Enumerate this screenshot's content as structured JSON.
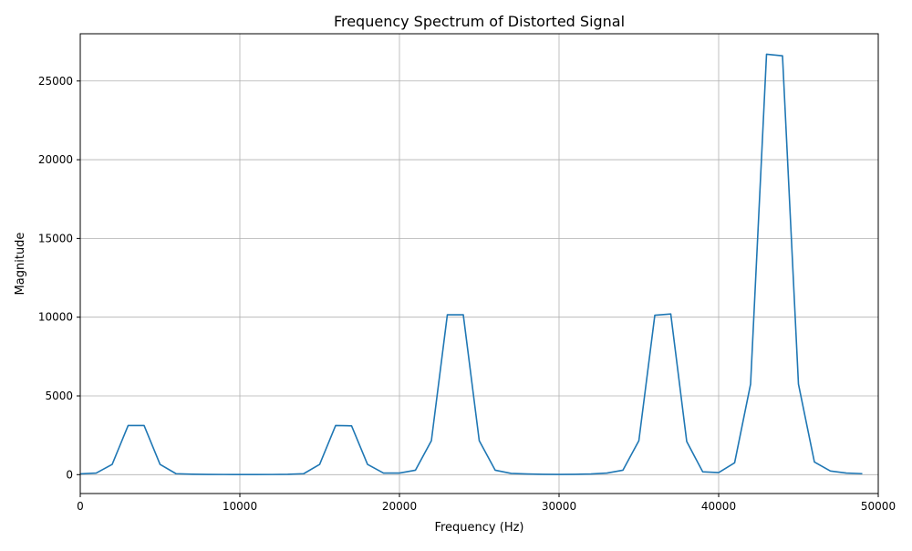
{
  "chart_data": {
    "type": "line",
    "title": "Frequency Spectrum of Distorted Signal",
    "xlabel": "Frequency (Hz)",
    "ylabel": "Magnitude",
    "xlim": [
      0,
      50000
    ],
    "ylim": [
      -1200,
      28000
    ],
    "x_ticks": [
      0,
      10000,
      20000,
      30000,
      40000,
      50000
    ],
    "y_ticks": [
      0,
      5000,
      10000,
      15000,
      20000,
      25000
    ],
    "grid": true,
    "series": [
      {
        "color": "#1f77b4",
        "x": [
          0,
          1000,
          2000,
          3000,
          4000,
          5000,
          6000,
          7000,
          8000,
          9000,
          10000,
          11000,
          12000,
          13000,
          14000,
          15000,
          16000,
          17000,
          18000,
          19000,
          20000,
          21000,
          22000,
          23000,
          24000,
          25000,
          26000,
          27000,
          28000,
          29000,
          30000,
          31000,
          32000,
          33000,
          34000,
          35000,
          36000,
          37000,
          38000,
          39000,
          40000,
          41000,
          42000,
          43000,
          44000,
          45000,
          46000,
          47000,
          48000,
          49000
        ],
        "y": [
          50,
          100,
          650,
          3120,
          3120,
          650,
          60,
          30,
          15,
          10,
          5,
          5,
          10,
          20,
          60,
          650,
          3120,
          3100,
          650,
          100,
          100,
          280,
          2150,
          10150,
          10150,
          2150,
          280,
          80,
          40,
          20,
          15,
          20,
          40,
          100,
          280,
          2150,
          10120,
          10200,
          2100,
          180,
          130,
          750,
          5750,
          26700,
          26600,
          5750,
          800,
          230,
          100,
          60
        ]
      }
    ]
  }
}
